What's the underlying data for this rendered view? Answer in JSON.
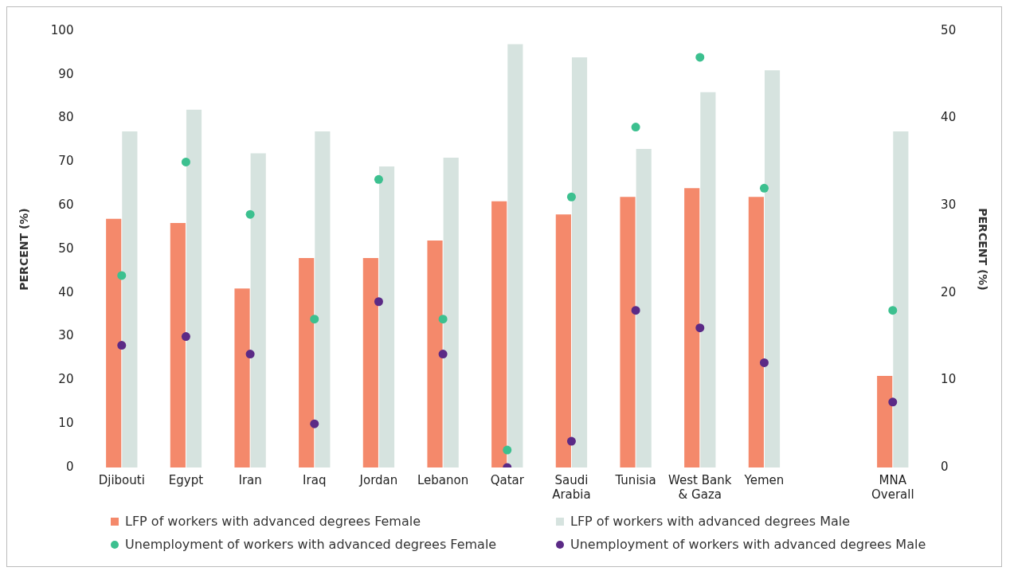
{
  "chart_data": {
    "type": "bar",
    "categories": [
      "Djibouti",
      "Egypt",
      "Iran",
      "Iraq",
      "Jordan",
      "Lebanon",
      "Qatar",
      "Saudi Arabia",
      "Tunisia",
      "West Bank & Gaza",
      "Yemen",
      null,
      "MNA Overall"
    ],
    "ylabel": "PERCENT (%)",
    "y2label": "PERCENT (%)",
    "ylim": [
      0,
      100
    ],
    "yticks": [
      0,
      10,
      20,
      30,
      40,
      50,
      60,
      70,
      80,
      90,
      100
    ],
    "y2lim": [
      0,
      50
    ],
    "y2ticks": [
      0,
      10,
      20,
      30,
      40,
      50
    ],
    "grid": false,
    "legend": "bottom",
    "marker": "circle",
    "series": [
      {
        "name": "LFP of workers with advanced degrees Female",
        "color": "#f4896b",
        "values": [
          57,
          56,
          41,
          48,
          48,
          52,
          61,
          58,
          62,
          64,
          62,
          null,
          21
        ]
      },
      {
        "name": "LFP of workers with advanced degrees Male",
        "color": "#d6e3df",
        "values": [
          77,
          82,
          72,
          77,
          69,
          71,
          97,
          94,
          73,
          86,
          91,
          null,
          77
        ]
      },
      {
        "name": "Unemployment of workers with advanced degrees Female",
        "type": "scatter",
        "axis": "y2",
        "color": "#3cc08f",
        "values": [
          22,
          35,
          29,
          17,
          33,
          17,
          2,
          31,
          39,
          47,
          32,
          null,
          18
        ]
      },
      {
        "name": "Unemployment of workers with advanced degrees Male",
        "type": "scatter",
        "axis": "y2",
        "color": "#5b2a86",
        "values": [
          14,
          15,
          13,
          5,
          19,
          13,
          0,
          3,
          18,
          16,
          12,
          null,
          7.5
        ]
      }
    ]
  }
}
